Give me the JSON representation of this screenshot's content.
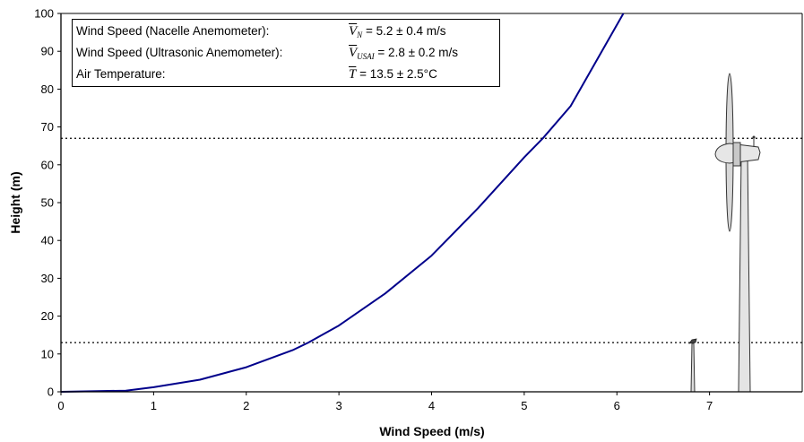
{
  "chart_data": {
    "type": "line",
    "xlabel": "Wind Speed (m/s)",
    "ylabel": "Height (m)",
    "xlim": [
      0,
      8
    ],
    "ylim": [
      0,
      100
    ],
    "x_ticks": [
      "0",
      "1",
      "2",
      "3",
      "4",
      "5",
      "6",
      "7"
    ],
    "y_ticks": [
      "0",
      "10",
      "20",
      "30",
      "40",
      "50",
      "60",
      "70",
      "80",
      "90",
      "100"
    ],
    "grid": false,
    "series": [
      {
        "color": "#00008b",
        "x": [
          0.0,
          0.7,
          1.0,
          1.5,
          2.0,
          2.5,
          2.67,
          3.0,
          3.5,
          4.0,
          4.5,
          5.0,
          5.2,
          5.5,
          6.07
        ],
        "y": [
          0.0,
          0.3,
          1.2,
          3.2,
          6.5,
          11.0,
          13.0,
          17.5,
          26.0,
          36.0,
          48.5,
          62.0,
          67.0,
          75.5,
          100.0
        ]
      }
    ],
    "reference_lines": [
      {
        "axis": "y",
        "value": 67,
        "style": "dotted"
      },
      {
        "axis": "y",
        "value": 13,
        "style": "dotted"
      }
    ],
    "legend": {
      "position": "top-left",
      "entries": [
        {
          "label": "Wind Speed (Nacelle Anemometer):",
          "symbol": "V",
          "subscript": "N",
          "value": " = 5.2 ± 0.4 m/s"
        },
        {
          "label": "Wind Speed (Ultrasonic Anemometer):",
          "symbol": "V",
          "subscript": "USAI",
          "value": " = 2.8 ± 0.2 m/s"
        },
        {
          "label": "Air Temperature:",
          "symbol": "T",
          "subscript": "",
          "value": "  = 13.5 ± 2.5°C"
        }
      ]
    },
    "illustrations": [
      "wind-turbine",
      "ultrasonic-anemometer-mast"
    ]
  },
  "colors": {
    "curve": "#00008b",
    "axis": "#000000",
    "turbine_fill": "#e4e4e4",
    "turbine_stroke": "#333333"
  }
}
